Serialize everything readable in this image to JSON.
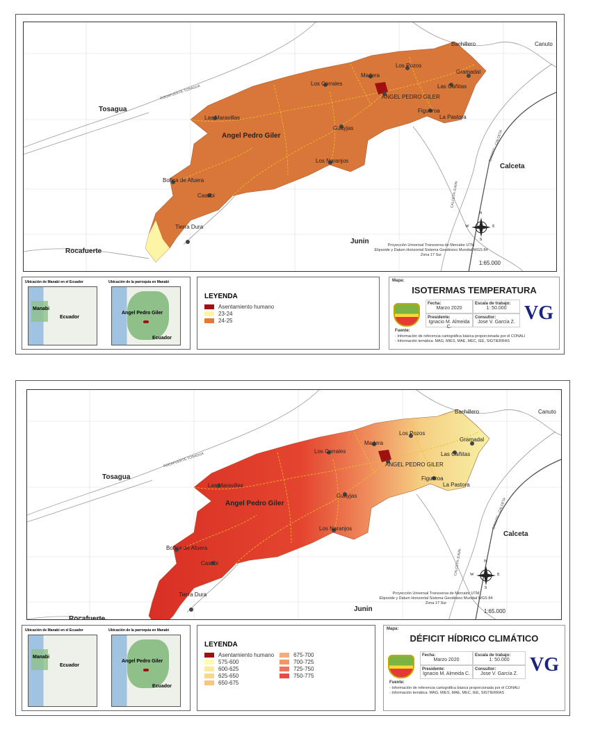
{
  "maps": [
    {
      "map_title": "ISOTERMAS TEMPERATURA",
      "mapa_label": "Mapa:",
      "places": [
        "Tosagua",
        "Bachillero",
        "Canuto",
        "Los Pozos",
        "Gramadal",
        "Madera",
        "Los Corrales",
        "ANGEL PEDRO GILER",
        "Las Cañitas",
        "Las Maravillas",
        "Figueroa",
        "La Pastora",
        "Guayjas",
        "Angel Pedro Giler",
        "Los Naranjos",
        "Calceta",
        "Boñca de Afuera",
        "Casobi",
        "Junin",
        "Tierra Dura",
        "Rocafuerte"
      ],
      "roads": [
        "ROCAFUERTE-TOSAGUA",
        "CANUTO - CALCETA",
        "CALCETA-JUNIN"
      ],
      "projection": [
        "Proyección Universal Transversa de Mercator UTM",
        "Elipsoide y Datum Horizontal Sistema Geodésico Mundial WGS 84",
        "Zona 17 Sur"
      ],
      "scale": "1:65.000",
      "compass": {
        "n": "N",
        "s": "S",
        "e": "E",
        "w": "W"
      },
      "legend": {
        "title": "LEYENDA",
        "items": [
          {
            "label": "Asentamiento humano",
            "color": "#a01010"
          },
          {
            "label": "23-24",
            "color": "#fbf5a5"
          },
          {
            "label": "24-25",
            "color": "#e07b3c"
          }
        ]
      },
      "insets": {
        "ecuador_caption": "Ubicación de Manabi en el Ecuador",
        "manabi_label": "Manabi",
        "ecuador_label": "Ecuador",
        "parroquia_caption": "Ubicación de la parroquia en Manabi",
        "parroquia_label": "Angel Pedro Giler",
        "ecuador_label2": "Ecuador"
      },
      "info": {
        "fecha_label": "Fecha:",
        "fecha": "Marzo 2020",
        "escala_label": "Escala de trabajo:",
        "escala": "1: 50.000",
        "presidente_label": "Presidente:",
        "presidente": "Ignacio M. Almeida C.",
        "consultor_label": "Consultor:",
        "consultor": "Jose V. García Z.",
        "logo": "VG",
        "fuente_label": "Fuente:",
        "fuente": [
          "- Información de referencia cartográfica básica proporcionada por el CONALI",
          "- Información temática: MAG, MIES, MAE, MEC, IEE, SIGTIERRAS"
        ]
      }
    },
    {
      "map_title": "DÉFICIT HÍDRICO CLIMÁTICO",
      "mapa_label": "Mapa:",
      "places": [
        "Tosagua",
        "Bachillero",
        "Canuto",
        "Los Pozos",
        "Gramadal",
        "Madera",
        "Los Corrales",
        "ANGEL PEDRO GILER",
        "Las Cañitas",
        "Las Maravillas",
        "Figueroa",
        "La Pastora",
        "Guayjas",
        "Angel Pedro Giler",
        "Los Naranjos",
        "Calceta",
        "Boñca de Afuera",
        "Casobi",
        "Junin",
        "Tierra Dura",
        "Rocafuerte"
      ],
      "roads": [
        "ROCAFUERTE-TOSAGUA",
        "CANUTO - CALCETA",
        "CALCETA-JUNIN"
      ],
      "projection": [
        "Proyección Universal Transversa de Mercator UTM",
        "Elipsoide y Datum Horizontal Sistema Geodésico Mundial WGS 84",
        "Zona 17 Sur"
      ],
      "scale": "1:65.000",
      "compass": {
        "n": "N",
        "s": "S",
        "e": "E",
        "w": "W"
      },
      "legend": {
        "title": "LEYENDA",
        "items": [
          {
            "label": "Asentamiento humano",
            "color": "#a01010"
          },
          {
            "label": "575-600",
            "color": "#fdfbb0"
          },
          {
            "label": "600-625",
            "color": "#fbe9a0"
          },
          {
            "label": "625-650",
            "color": "#f9d88c"
          },
          {
            "label": "650-675",
            "color": "#f8c47e"
          },
          {
            "label": "675-700",
            "color": "#f6ae78"
          },
          {
            "label": "700-725",
            "color": "#f3946a"
          },
          {
            "label": "725-750",
            "color": "#ee7460"
          },
          {
            "label": "750-775",
            "color": "#e84a44"
          }
        ]
      },
      "insets": {
        "ecuador_caption": "Ubicación de Manabi en el Ecuador",
        "manabi_label": "Manabi",
        "ecuador_label": "Ecuador",
        "parroquia_caption": "Ubicación de la parroquia en Manabi",
        "parroquia_label": "Angel Pedro Giler",
        "ecuador_label2": "Ecuador"
      },
      "info": {
        "fecha_label": "Fecha:",
        "fecha": "Marzo 2020",
        "escala_label": "Escala de trabajo:",
        "escala": "1: 50.000",
        "presidente_label": "Presidente:",
        "presidente": "Ignacio M. Almeida C.",
        "consultor_label": "Consultor:",
        "consultor": "Jose V. García Z.",
        "logo": "VG",
        "fuente_label": "Fuente:",
        "fuente": [
          "- Información de referencia cartográfica básica proporcionada por el CONALI",
          "- Información temática: MAG, MIES, MAE, MEC, IEE, SIGTIERRAS"
        ]
      }
    }
  ]
}
